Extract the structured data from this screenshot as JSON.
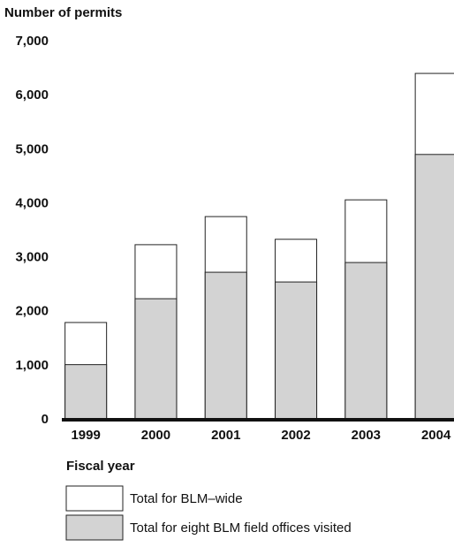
{
  "chart_data": {
    "type": "bar",
    "barmode": "overlay",
    "title": "Number of permits",
    "x_label": "Fiscal year",
    "categories": [
      "1999",
      "2000",
      "2001",
      "2002",
      "2003",
      "2004"
    ],
    "series": [
      {
        "name": "Total for BLM–wide",
        "color": "#ffffff",
        "values": [
          1800,
          3240,
          3760,
          3340,
          4070,
          6410
        ]
      },
      {
        "name": "Total for eight BLM field offices visited",
        "color": "#d3d3d3",
        "values": [
          1020,
          2240,
          2730,
          2550,
          2910,
          4910
        ]
      }
    ],
    "ylim": [
      0,
      7000
    ],
    "yticks": [
      0,
      {
        "value": 1000,
        "label": "1,000"
      },
      {
        "value": 2000,
        "label": "2,000"
      },
      {
        "value": 3000,
        "label": "3,000"
      },
      {
        "value": 4000,
        "label": "4,000"
      },
      {
        "value": 5000,
        "label": "5,000"
      },
      {
        "value": 6000,
        "label": "6,000"
      },
      {
        "value": 7000,
        "label": "7,000"
      }
    ],
    "grid": false
  }
}
